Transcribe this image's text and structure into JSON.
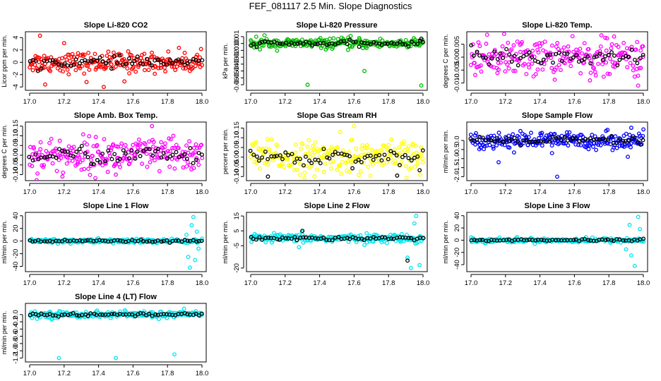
{
  "figure_title": "FEF_081117  2.5 Min. Slope Diagnostics",
  "chart_data": [
    {
      "type": "scatter",
      "title": "Slope Li-820 CO2",
      "ylabel": "Licor ppm per min.",
      "color": "#ff0000",
      "xlim": [
        17.0,
        18.0
      ],
      "xticks": [
        "17.0",
        "17.2",
        "17.4",
        "17.6",
        "17.8",
        "18.0"
      ],
      "ylim": [
        -4.2,
        4.6
      ],
      "yticks": [
        -4,
        -2,
        0,
        2,
        4
      ],
      "ytick_labels": [
        "-4",
        "-2",
        "0",
        "2",
        "4"
      ],
      "spread": 0.9,
      "outliers": [
        [
          17.06,
          4.3
        ],
        [
          17.2,
          3.1
        ],
        [
          17.33,
          -3.2
        ],
        [
          17.43,
          -4.0
        ],
        [
          17.09,
          -3.6
        ],
        [
          17.55,
          -3.1
        ]
      ],
      "outlier_black": []
    },
    {
      "type": "scatter",
      "title": "Slope Li-820 Pressure",
      "ylabel": "kPa per min.",
      "color": "#00bb00",
      "xlim": [
        17.0,
        18.0
      ],
      "xticks": [
        "17.0",
        "17.2",
        "17.4",
        "17.6",
        "17.8",
        "18.0"
      ],
      "ylim": [
        -0.065,
        0.014
      ],
      "yticks": [
        0.01,
        0.0,
        -0.01,
        -0.02,
        -0.03,
        -0.04,
        -0.05,
        -0.06
      ],
      "ytick_labels": [
        "0.01",
        "0.00",
        "-0.01",
        "-0.02",
        "-0.03",
        "-0.04",
        "-0.05",
        "-0.06"
      ],
      "spread": 0.004,
      "outliers": [
        [
          17.33,
          -0.06
        ],
        [
          17.66,
          -0.04
        ],
        [
          17.99,
          -0.061
        ],
        [
          17.08,
          0.012
        ],
        [
          17.58,
          0.011
        ]
      ],
      "outlier_black": [
        [
          17.99,
          0.007
        ]
      ]
    },
    {
      "type": "scatter",
      "title": "Slope Li-820 Temp.",
      "ylabel": "degrees C per min.",
      "color": "#ff00ff",
      "xlim": [
        17.0,
        18.0
      ],
      "xticks": [
        "17.0",
        "17.2",
        "17.4",
        "17.6",
        "17.8",
        "18.0"
      ],
      "ylim": [
        -0.012,
        0.009
      ],
      "yticks": [
        0.005,
        0.0,
        -0.005,
        -0.01
      ],
      "ytick_labels": [
        "0.005",
        "0.000",
        "-0.005",
        "-0.010"
      ],
      "spread": 0.004,
      "outliers": [
        [
          17.97,
          -0.011
        ],
        [
          17.69,
          -0.009
        ]
      ],
      "outlier_black": []
    },
    {
      "type": "scatter",
      "title": "Slope Amb. Box Temp.",
      "ylabel": "degrees C per min.",
      "color": "#ff00ff",
      "xlim": [
        17.0,
        18.0
      ],
      "xticks": [
        "17.0",
        "17.2",
        "17.4",
        "17.6",
        "17.8",
        "18.0"
      ],
      "ylim": [
        -0.12,
        0.16
      ],
      "yticks": [
        0.15,
        0.1,
        0.05,
        0.0,
        -0.05,
        -0.1
      ],
      "ytick_labels": [
        "0.15",
        "0.10",
        "0.05",
        "0.00",
        "-0.05",
        "-0.10"
      ],
      "spread": 0.05,
      "outliers": [
        [
          17.71,
          0.15
        ],
        [
          17.19,
          -0.11
        ],
        [
          17.5,
          -0.1
        ]
      ],
      "outlier_black": []
    },
    {
      "type": "scatter",
      "title": "Slope Gas Stream RH",
      "ylabel": "percent per min.",
      "color": "#ffff00",
      "xlim": [
        17.0,
        18.0
      ],
      "xticks": [
        "17.0",
        "17.2",
        "17.4",
        "17.6",
        "17.8",
        "18.0"
      ],
      "ylim": [
        -0.11,
        0.17
      ],
      "yticks": [
        0.15,
        0.1,
        0.05,
        0.0,
        -0.05,
        -0.1
      ],
      "ytick_labels": [
        "0.15",
        "0.10",
        "0.05",
        "0.00",
        "-0.05",
        "-0.10"
      ],
      "spread": 0.045,
      "outliers": [
        [
          17.6,
          0.16
        ],
        [
          17.52,
          0.13
        ],
        [
          17.37,
          -0.1
        ]
      ],
      "outlier_black": [
        [
          17.1,
          -0.1
        ],
        [
          17.85,
          -0.095
        ]
      ]
    },
    {
      "type": "scatter",
      "title": "Slope Sample Flow",
      "ylabel": "ml/min per min.",
      "color": "#0000ff",
      "xlim": [
        17.0,
        18.0
      ],
      "xticks": [
        "17.0",
        "17.2",
        "17.4",
        "17.6",
        "17.8",
        "18.0"
      ],
      "ylim": [
        -2.1,
        0.9
      ],
      "yticks": [
        0.0,
        -0.5,
        -1.0,
        -1.5,
        -2.0
      ],
      "ytick_labels": [
        "0.0",
        "-0.5",
        "-1.0",
        "-1.5",
        "-2.0"
      ],
      "spread": 0.25,
      "outliers": [
        [
          17.5,
          -2.0
        ],
        [
          17.16,
          -1.2
        ],
        [
          17.47,
          -0.7
        ],
        [
          17.93,
          0.7
        ],
        [
          17.91,
          -0.9
        ]
      ],
      "outlier_black": []
    },
    {
      "type": "scatter",
      "title": "Slope Line 1 Flow",
      "ylabel": "ml/min per min.",
      "color": "#00e5ee",
      "xlim": [
        17.0,
        18.0
      ],
      "xticks": [
        "17.0",
        "17.2",
        "17.4",
        "17.6",
        "17.8",
        "18.0"
      ],
      "ylim": [
        -45,
        42
      ],
      "yticks": [
        40,
        20,
        0,
        -20,
        -40
      ],
      "ytick_labels": [
        "40",
        "20",
        "0",
        "-20",
        "-40"
      ],
      "spread": 2,
      "outliers": [
        [
          17.95,
          38
        ],
        [
          17.93,
          -42
        ],
        [
          17.94,
          25
        ],
        [
          17.92,
          -25
        ],
        [
          17.97,
          15
        ],
        [
          17.96,
          -30
        ],
        [
          17.91,
          10
        ],
        [
          17.98,
          -12
        ]
      ],
      "outlier_black": []
    },
    {
      "type": "scatter",
      "title": "Slope Line 2 Flow",
      "ylabel": "ml/min per min.",
      "color": "#00e5ee",
      "xlim": [
        17.0,
        18.0
      ],
      "xticks": [
        "17.0",
        "17.2",
        "17.4",
        "17.6",
        "17.8",
        "18.0"
      ],
      "ylim": [
        -21,
        16
      ],
      "yticks": [
        15,
        5,
        -5,
        -20
      ],
      "ytick_labels": [
        "15",
        "5",
        "-5",
        "-20"
      ],
      "spread": 1.5,
      "outliers": [
        [
          17.96,
          15
        ],
        [
          17.93,
          -20
        ],
        [
          17.95,
          10
        ],
        [
          17.91,
          -13
        ],
        [
          17.98,
          -18
        ],
        [
          17.28,
          -6
        ]
      ],
      "outlier_black": [
        [
          17.91,
          -15
        ],
        [
          17.3,
          5
        ]
      ]
    },
    {
      "type": "scatter",
      "title": "Slope Line 3 Flow",
      "ylabel": "ml/min per min.",
      "color": "#00e5ee",
      "xlim": [
        17.0,
        18.0
      ],
      "xticks": [
        "17.0",
        "17.2",
        "17.4",
        "17.6",
        "17.8",
        "18.0"
      ],
      "ylim": [
        -48,
        42
      ],
      "yticks": [
        40,
        20,
        0,
        -20,
        -40
      ],
      "ytick_labels": [
        "40",
        "20",
        "0",
        "-20",
        "-40"
      ],
      "spread": 2,
      "outliers": [
        [
          17.97,
          38
        ],
        [
          17.95,
          -42
        ],
        [
          17.92,
          25
        ],
        [
          17.93,
          -25
        ],
        [
          17.98,
          18
        ],
        [
          17.9,
          -15
        ]
      ],
      "outlier_black": []
    },
    {
      "type": "scatter",
      "title": "Slope Line 4 (LT) Flow",
      "ylabel": "ml/min per min.",
      "color": "#00e5ee",
      "xlim": [
        17.0,
        18.0
      ],
      "xticks": [
        "17.0",
        "17.2",
        "17.4",
        "17.6",
        "17.8",
        "18.0"
      ],
      "ylim": [
        -1.25,
        0.25
      ],
      "yticks": [
        0.0,
        -0.2,
        -0.4,
        -0.6,
        -0.8,
        -1.0,
        -1.2
      ],
      "ytick_labels": [
        "0.0",
        "-0.2",
        "-0.4",
        "-0.6",
        "-0.8",
        "-1.0",
        "-1.2"
      ],
      "spread": 0.05,
      "outliers": [
        [
          17.17,
          -1.2
        ],
        [
          17.5,
          -1.2
        ],
        [
          17.84,
          -1.1
        ]
      ],
      "outlier_black": []
    }
  ]
}
